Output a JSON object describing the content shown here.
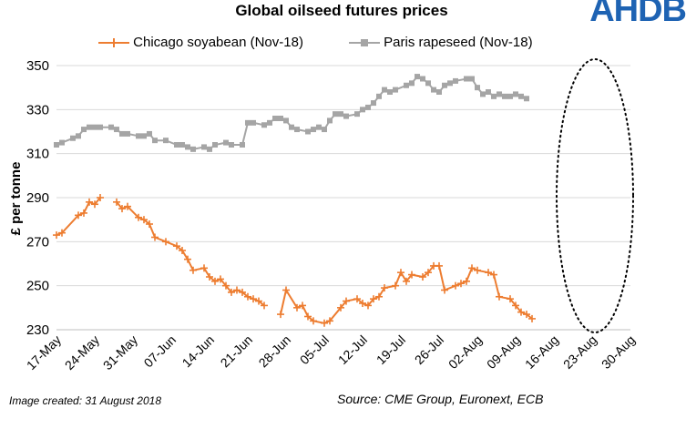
{
  "logo_text": "AHDB",
  "created_note": "Image created: 31 August 2018",
  "source_note": "Source: CME Group, Euronext, ECB",
  "colors": {
    "soy": "#ed7d31",
    "rapeseed": "#a5a5a5",
    "grid": "#d9d9d9"
  },
  "chart_data": {
    "type": "line",
    "title": "Global oilseed futures prices",
    "ylabel": "£ per tonne",
    "xlabel": "",
    "ylim": [
      230,
      350
    ],
    "yticks": [
      230,
      250,
      270,
      290,
      310,
      330,
      350
    ],
    "x_tick_labels": [
      "17-May",
      "24-May",
      "31-May",
      "07-Jun",
      "14-Jun",
      "21-Jun",
      "28-Jun",
      "05-Jul",
      "12-Jul",
      "19-Jul",
      "26-Jul",
      "02-Aug",
      "09-Aug",
      "16-Aug",
      "23-Aug",
      "30-Aug"
    ],
    "x_tick_days": [
      0,
      7,
      14,
      21,
      28,
      35,
      42,
      49,
      56,
      63,
      70,
      77,
      84,
      91,
      98,
      105
    ],
    "grid": "horizontal",
    "legend_position": "top",
    "annotation": "dotted ellipse around 21-Aug to 30-Aug",
    "series": [
      {
        "name": "Chicago soyabean (Nov-18)",
        "marker": "plus",
        "segments": [
          [
            [
              0,
              273
            ],
            [
              1,
              274
            ],
            [
              4,
              282
            ],
            [
              5,
              283
            ],
            [
              6,
              288
            ],
            [
              7,
              287
            ],
            [
              8,
              290
            ]
          ],
          [
            [
              11,
              288
            ],
            [
              12,
              285
            ],
            [
              13,
              286
            ],
            [
              15,
              281
            ],
            [
              16,
              280
            ],
            [
              17,
              278
            ],
            [
              18,
              272
            ],
            [
              20,
              270
            ],
            [
              22,
              268
            ],
            [
              23,
              266
            ],
            [
              24,
              262
            ],
            [
              25,
              257
            ],
            [
              27,
              258
            ],
            [
              28,
              254
            ],
            [
              29,
              252
            ],
            [
              30,
              253
            ],
            [
              31,
              250
            ],
            [
              32,
              247
            ],
            [
              33,
              248
            ],
            [
              34,
              247
            ],
            [
              35,
              245
            ],
            [
              36,
              244
            ],
            [
              37,
              243
            ],
            [
              38,
              241
            ]
          ],
          [
            [
              41,
              237
            ],
            [
              42,
              248
            ],
            [
              44,
              240
            ],
            [
              45,
              241
            ],
            [
              46,
              236
            ],
            [
              47,
              234
            ],
            [
              49,
              233
            ],
            [
              50,
              234
            ],
            [
              52,
              240
            ],
            [
              53,
              243
            ],
            [
              55,
              244
            ],
            [
              56,
              242
            ],
            [
              57,
              241
            ],
            [
              58,
              244
            ],
            [
              59,
              245
            ],
            [
              60,
              249
            ],
            [
              62,
              250
            ],
            [
              63,
              256
            ],
            [
              64,
              252
            ],
            [
              65,
              255
            ],
            [
              67,
              254
            ],
            [
              68,
              256
            ],
            [
              69,
              259
            ],
            [
              70,
              259
            ],
            [
              71,
              248
            ],
            [
              73,
              250
            ],
            [
              74,
              251
            ],
            [
              75,
              252
            ],
            [
              76,
              258
            ],
            [
              77,
              257
            ],
            [
              79,
              256
            ],
            [
              80,
              255
            ],
            [
              81,
              245
            ],
            [
              83,
              244
            ],
            [
              84,
              241
            ],
            [
              85,
              238
            ],
            [
              86,
              237
            ],
            [
              87,
              235
            ]
          ]
        ]
      },
      {
        "name": "Paris rapeseed (Nov-18)",
        "marker": "square",
        "segments": [
          [
            [
              0,
              314
            ],
            [
              1,
              315
            ],
            [
              3,
              317
            ],
            [
              4,
              318
            ],
            [
              5,
              321
            ],
            [
              6,
              322
            ],
            [
              7,
              322
            ],
            [
              8,
              322
            ],
            [
              10,
              322
            ],
            [
              11,
              321
            ],
            [
              12,
              319
            ],
            [
              13,
              319
            ],
            [
              15,
              318
            ],
            [
              16,
              318
            ],
            [
              17,
              319
            ],
            [
              18,
              316
            ],
            [
              20,
              316
            ],
            [
              22,
              314
            ],
            [
              23,
              314
            ],
            [
              24,
              313
            ],
            [
              25,
              312
            ],
            [
              27,
              313
            ],
            [
              28,
              312
            ],
            [
              29,
              314
            ],
            [
              31,
              315
            ],
            [
              32,
              314
            ],
            [
              34,
              314
            ],
            [
              35,
              324
            ],
            [
              36,
              324
            ],
            [
              38,
              323
            ],
            [
              39,
              324
            ],
            [
              40,
              326
            ],
            [
              41,
              326
            ],
            [
              42,
              325
            ],
            [
              43,
              322
            ],
            [
              44,
              321
            ],
            [
              46,
              320
            ],
            [
              47,
              321
            ],
            [
              48,
              322
            ],
            [
              49,
              321
            ],
            [
              50,
              325
            ],
            [
              51,
              328
            ],
            [
              52,
              328
            ],
            [
              53,
              327
            ],
            [
              55,
              328
            ],
            [
              56,
              330
            ],
            [
              57,
              331
            ],
            [
              58,
              333
            ],
            [
              59,
              336
            ],
            [
              60,
              339
            ],
            [
              61,
              338
            ],
            [
              62,
              339
            ],
            [
              64,
              341
            ],
            [
              65,
              342
            ],
            [
              66,
              345
            ],
            [
              67,
              344
            ],
            [
              68,
              342
            ],
            [
              69,
              339
            ],
            [
              70,
              338
            ],
            [
              71,
              341
            ],
            [
              72,
              342
            ],
            [
              73,
              343
            ],
            [
              75,
              344
            ],
            [
              76,
              344
            ],
            [
              77,
              340
            ],
            [
              78,
              337
            ],
            [
              79,
              338
            ],
            [
              80,
              336
            ],
            [
              81,
              337
            ],
            [
              82,
              336
            ],
            [
              83,
              336
            ],
            [
              84,
              337
            ],
            [
              85,
              336
            ],
            [
              86,
              335
            ]
          ]
        ]
      }
    ]
  }
}
